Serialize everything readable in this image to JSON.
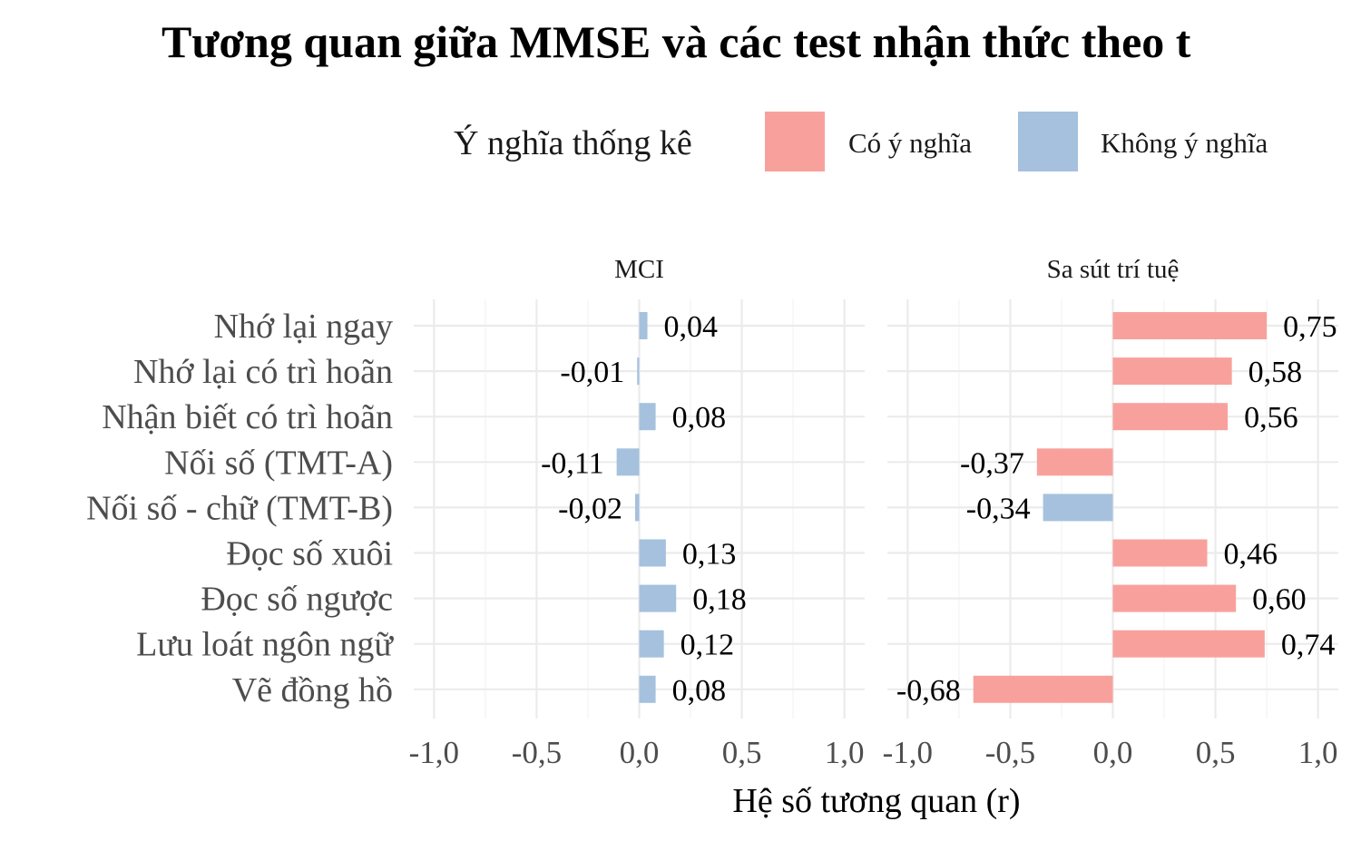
{
  "chart_data": {
    "type": "bar",
    "orientation": "horizontal",
    "title": "Tương quan giữa MMSE và các test nhận thức theo t",
    "xlabel": "Hệ số tương quan (r)",
    "ylabel": "",
    "xlim": [
      -1.0,
      1.0
    ],
    "x_ticks": [
      "-1,0",
      "-0,5",
      "0,0",
      "0,5",
      "1,0"
    ],
    "x_tick_values": [
      -1.0,
      -0.5,
      0.0,
      0.5,
      1.0
    ],
    "categories": [
      "Nhớ lại ngay",
      "Nhớ lại có trì hoãn",
      "Nhận biết có trì hoãn",
      "Nối số (TMT-A)",
      "Nối số - chữ (TMT-B)",
      "Đọc số xuôi",
      "Đọc số ngược",
      "Lưu loát ngôn ngữ",
      "Vẽ đồng hồ"
    ],
    "legend": {
      "title": "Ý nghĩa thống kê",
      "position": "top",
      "items": [
        {
          "label": "Có ý nghĩa",
          "color": "#F8A19C"
        },
        {
          "label": "Không ý nghĩa",
          "color": "#A5C1DD"
        }
      ]
    },
    "panels": [
      {
        "name": "MCI",
        "values": [
          0.04,
          -0.01,
          0.08,
          -0.11,
          -0.02,
          0.13,
          0.18,
          0.12,
          0.08
        ],
        "labels": [
          "0,04",
          "-0,01",
          "0,08",
          "-0,11",
          "-0,02",
          "0,13",
          "0,18",
          "0,12",
          "0,08"
        ],
        "significant": [
          false,
          false,
          false,
          false,
          false,
          false,
          false,
          false,
          false
        ]
      },
      {
        "name": "Sa sút trí tuệ",
        "values": [
          0.75,
          0.58,
          0.56,
          -0.37,
          -0.34,
          0.46,
          0.6,
          0.74,
          -0.68
        ],
        "labels": [
          "0,75",
          "0,58",
          "0,56",
          "-0,37",
          "-0,34",
          "0,46",
          "0,60",
          "0,74",
          "-0,68"
        ],
        "significant": [
          true,
          true,
          true,
          true,
          false,
          true,
          true,
          true,
          true
        ]
      }
    ],
    "grid": true
  }
}
